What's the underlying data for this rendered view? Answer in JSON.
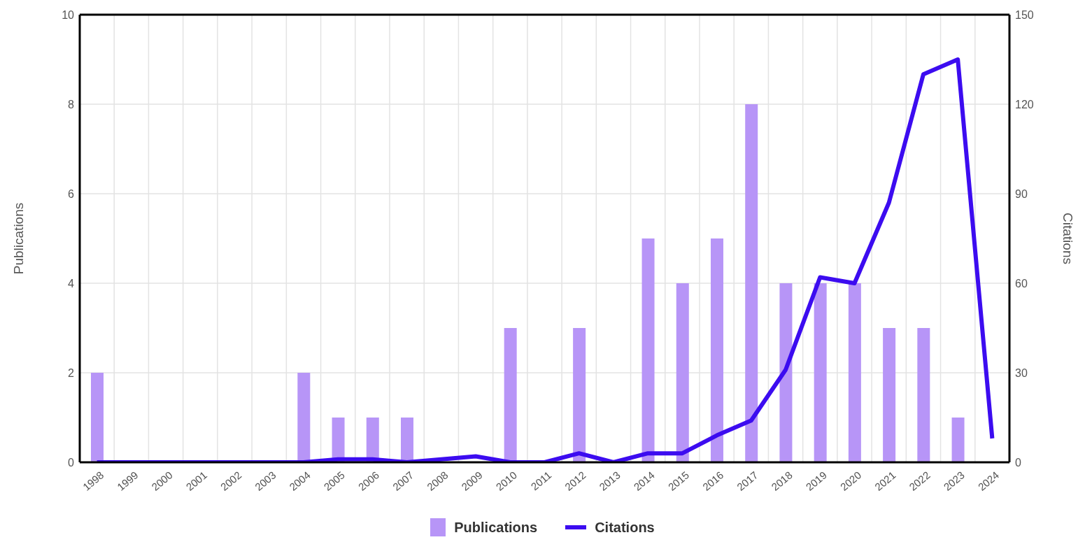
{
  "chart_data": {
    "type": "bar",
    "categories": [
      "1998",
      "1999",
      "2000",
      "2001",
      "2002",
      "2003",
      "2004",
      "2005",
      "2006",
      "2007",
      "2008",
      "2009",
      "2010",
      "2011",
      "2012",
      "2013",
      "2014",
      "2015",
      "2016",
      "2017",
      "2018",
      "2019",
      "2020",
      "2021",
      "2022",
      "2023",
      "2024"
    ],
    "series": [
      {
        "name": "Publications",
        "color": "#b795f7",
        "values": [
          2,
          0,
          0,
          0,
          0,
          0,
          2,
          1,
          1,
          1,
          0,
          0,
          3,
          0,
          3,
          0,
          5,
          4,
          5,
          8,
          4,
          4,
          4,
          3,
          3,
          1,
          0
        ]
      },
      {
        "name": "Citations",
        "type": "line",
        "axis": "y2",
        "color": "#3c0cf0",
        "values": [
          0,
          0,
          0,
          0,
          0,
          0,
          0,
          1,
          1,
          0,
          1,
          2,
          0,
          0,
          3,
          0,
          3,
          3,
          9,
          14,
          31,
          62,
          60,
          87,
          130,
          135,
          8
        ]
      }
    ],
    "ylabel": "Publications",
    "y2label": "Citations",
    "ylim": [
      0,
      10
    ],
    "yticks": [
      0,
      2,
      4,
      6,
      8,
      10
    ],
    "y2lim": [
      0,
      150
    ],
    "y2ticks": [
      0,
      30,
      60,
      90,
      120,
      150
    ],
    "grid": true,
    "legend": "bottom",
    "marker": "none"
  }
}
